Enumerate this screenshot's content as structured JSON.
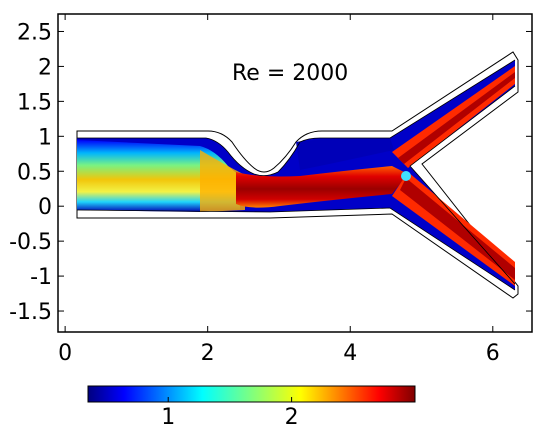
{
  "chart_data": {
    "type": "heatmap",
    "title": "",
    "xlabel": "",
    "ylabel": "",
    "xlim": [
      -0.1,
      6.55
    ],
    "ylim": [
      -1.8,
      2.75
    ],
    "x_ticks": [
      0,
      2,
      4,
      6
    ],
    "x_tick_labels": [
      "0",
      "2",
      "4",
      "6"
    ],
    "y_ticks": [
      2.5,
      2,
      1.5,
      1,
      0.5,
      0,
      -0.5,
      -1,
      -1.5
    ],
    "y_tick_labels": [
      "2.5",
      "2",
      "1.5",
      "1",
      "0.5",
      "0",
      "-0.5",
      "-1",
      "-1.5"
    ],
    "annotation": "Re = 2000",
    "colorbar": {
      "colormap": "jet",
      "range": [
        0.35,
        3.0
      ],
      "ticks": [
        1,
        2
      ],
      "tick_labels": [
        "1",
        "2"
      ],
      "orientation": "horizontal"
    },
    "geometry": {
      "inlet_x": 0,
      "outlet_x": 6.4,
      "inlet_width": 1.2,
      "upper_wall_y": 1.1,
      "lower_wall_y": -0.1,
      "stenosis_center_x": 2.7,
      "stenosis_min_y": 0.58,
      "bifurcation_x": 4.55,
      "branch_apex_x": 4.88
    },
    "field_description_values": {
      "inlet_core_speed": 2.0,
      "jet_core_speed": 3.0,
      "branch_core_speed": 2.8
    }
  }
}
